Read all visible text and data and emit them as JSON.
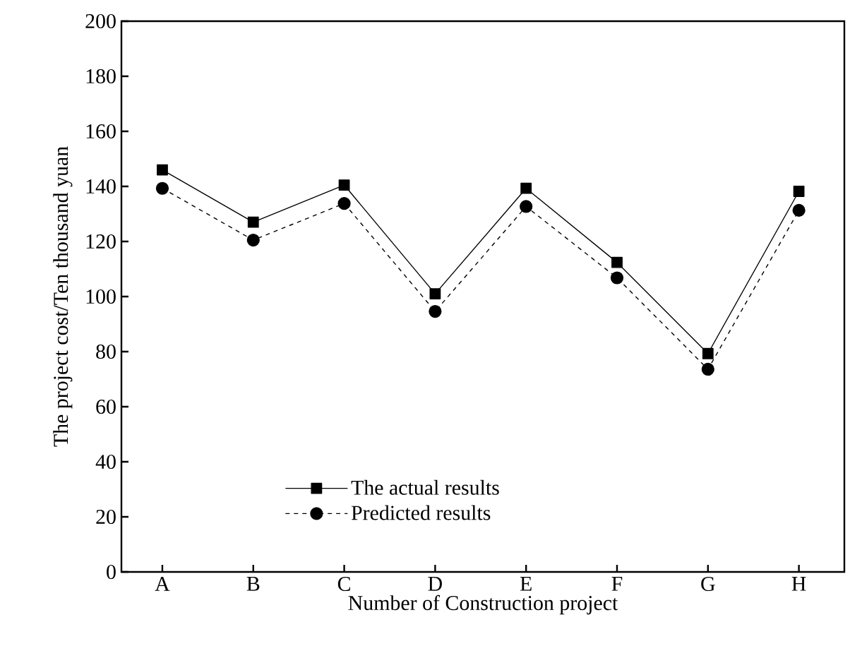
{
  "chart_data": {
    "type": "line",
    "xlabel": "Number of Construction project",
    "ylabel": "The project cost/Ten thousand yuan",
    "categories": [
      "A",
      "B",
      "C",
      "D",
      "E",
      "F",
      "G",
      "H"
    ],
    "series": [
      {
        "name": "The actual results",
        "color": "#000000",
        "marker": "square",
        "line_style": "solid",
        "values": [
          146,
          127,
          140.5,
          101,
          139.3,
          112.4,
          79.3,
          138.2
        ]
      },
      {
        "name": "Predicted results",
        "color": "#000000",
        "marker": "circle",
        "line_style": "dashed",
        "values": [
          139.3,
          120.5,
          133.8,
          94.6,
          132.7,
          106.8,
          73.6,
          131.3
        ]
      }
    ],
    "ylim": [
      0,
      200
    ],
    "yticks": [
      0,
      20,
      40,
      60,
      80,
      100,
      120,
      140,
      160,
      180,
      200
    ],
    "grid": false,
    "legend": "bottom"
  }
}
